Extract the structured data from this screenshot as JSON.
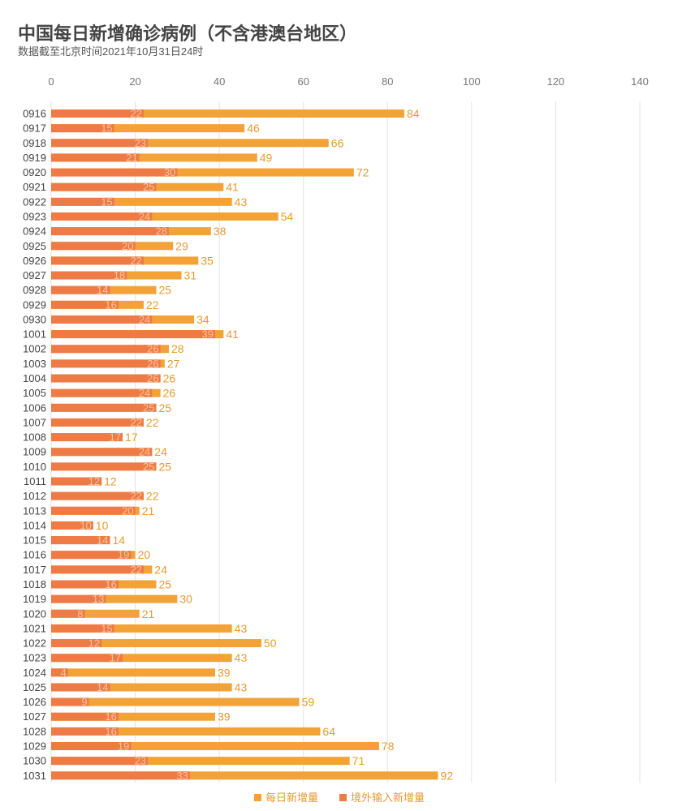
{
  "title": "中国每日新增确诊病例（不含港澳台地区）",
  "subtitle": "数据截至北京时间2021年10月31日24时",
  "chart_data": {
    "type": "bar",
    "orientation": "horizontal",
    "categories": [
      "0916",
      "0917",
      "0918",
      "0919",
      "0920",
      "0921",
      "0922",
      "0923",
      "0924",
      "0925",
      "0926",
      "0927",
      "0928",
      "0929",
      "0930",
      "1001",
      "1002",
      "1003",
      "1004",
      "1005",
      "1006",
      "1007",
      "1008",
      "1009",
      "1010",
      "1011",
      "1012",
      "1013",
      "1014",
      "1015",
      "1016",
      "1017",
      "1018",
      "1019",
      "1020",
      "1021",
      "1022",
      "1023",
      "1024",
      "1025",
      "1026",
      "1027",
      "1028",
      "1029",
      "1030",
      "1031"
    ],
    "series": [
      {
        "name": "每日新增量",
        "color": "#F2A236",
        "values": [
          84,
          46,
          66,
          49,
          72,
          41,
          43,
          54,
          38,
          29,
          35,
          31,
          25,
          22,
          34,
          41,
          28,
          27,
          26,
          26,
          25,
          22,
          17,
          24,
          25,
          12,
          22,
          21,
          10,
          14,
          20,
          24,
          25,
          30,
          21,
          43,
          50,
          43,
          39,
          43,
          59,
          39,
          64,
          78,
          71,
          92
        ]
      },
      {
        "name": "境外输入新增量",
        "color": "#EE7B45",
        "values": [
          22,
          15,
          23,
          21,
          30,
          25,
          15,
          24,
          28,
          20,
          22,
          18,
          14,
          16,
          24,
          39,
          26,
          26,
          26,
          24,
          25,
          22,
          17,
          24,
          25,
          12,
          22,
          20,
          10,
          14,
          19,
          22,
          16,
          13,
          8,
          15,
          12,
          17,
          4,
          14,
          9,
          16,
          16,
          19,
          23,
          33
        ]
      }
    ],
    "xlim": [
      0,
      140
    ],
    "ticks": [
      "0",
      "20",
      "40",
      "60",
      "80",
      "100",
      "120",
      "140"
    ],
    "tick_values": [
      0,
      20,
      40,
      60,
      80,
      100,
      120,
      140
    ],
    "grid": true,
    "legend": "bottom"
  }
}
